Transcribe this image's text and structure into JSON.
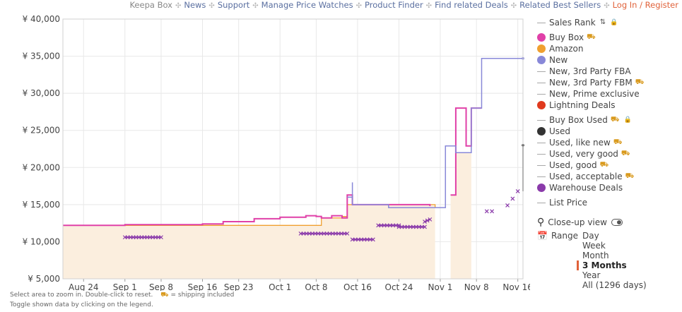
{
  "nav": {
    "items": [
      "Keepa Box",
      "News",
      "Support",
      "Manage Price Watches",
      "Product Finder",
      "Find related Deals",
      "Related Best Sellers"
    ],
    "login": "Log In / Register"
  },
  "colors": {
    "buy_box": "#e040a8",
    "amazon": "#f0a030",
    "new": "#8888d8",
    "lightning": "#e03a1e",
    "used": "#333333",
    "warehouse": "#8a3aaa",
    "amazon_fill": "#fbeede",
    "grid": "#e8e8e8"
  },
  "legend": [
    {
      "label": "Sales Rank",
      "symbol": "dash",
      "sort_icon": true,
      "lock": true
    },
    {
      "label": "Buy Box",
      "symbol": "dot",
      "color": "#e040a8",
      "truck": true
    },
    {
      "label": "Amazon",
      "symbol": "dot",
      "color": "#f0a030"
    },
    {
      "label": "New",
      "symbol": "dot",
      "color": "#8888d8"
    },
    {
      "label": "New, 3rd Party FBA",
      "symbol": "dash"
    },
    {
      "label": "New, 3rd Party FBM",
      "symbol": "dash",
      "truck": true
    },
    {
      "label": "New, Prime exclusive",
      "symbol": "dash"
    },
    {
      "label": "Lightning Deals",
      "symbol": "dot",
      "color": "#e03a1e"
    },
    {
      "label": "Buy Box Used",
      "symbol": "dash",
      "truck": true,
      "lock": true
    },
    {
      "label": "Used",
      "symbol": "dot",
      "color": "#333333"
    },
    {
      "label": "Used, like new",
      "symbol": "dash",
      "truck": true
    },
    {
      "label": "Used, very good",
      "symbol": "dash",
      "truck": true
    },
    {
      "label": "Used, good",
      "symbol": "dash",
      "truck": true
    },
    {
      "label": "Used, acceptable",
      "symbol": "dash",
      "truck": true
    },
    {
      "label": "Warehouse Deals",
      "symbol": "dot",
      "color": "#8a3aaa"
    },
    {
      "label": "List Price",
      "symbol": "dash"
    }
  ],
  "closeup": {
    "label": "Close-up view"
  },
  "range": {
    "label": "Range",
    "options": [
      "Day",
      "Week",
      "Month",
      "3 Months",
      "Year",
      "All (1296 days)"
    ],
    "selected": "3 Months"
  },
  "notes": {
    "select": "Select area to zoom in. Double-click to reset.",
    "shipping": "= shipping included",
    "toggle": "Toggle shown data by clicking on the legend."
  },
  "chart_data": {
    "type": "line",
    "ylim": [
      5000,
      40000
    ],
    "yticks": [
      5000,
      10000,
      15000,
      20000,
      25000,
      30000,
      35000,
      40000
    ],
    "ytick_labels": [
      "¥ 5,000",
      "¥ 10,000",
      "¥ 15,000",
      "¥ 20,000",
      "¥ 25,000",
      "¥ 30,000",
      "¥ 35,000",
      "¥ 40,000"
    ],
    "xlim": [
      "2024-08-20",
      "2024-11-17"
    ],
    "xticks": [
      "2024-08-24",
      "2024-09-01",
      "2024-09-08",
      "2024-09-16",
      "2024-09-23",
      "2024-10-01",
      "2024-10-08",
      "2024-10-16",
      "2024-10-24",
      "2024-11-01",
      "2024-11-08",
      "2024-11-16"
    ],
    "xtick_labels": [
      "Aug 24",
      "Sep 1",
      "Sep 8",
      "Sep 16",
      "Sep 23",
      "Oct 1",
      "Oct 8",
      "Oct 16",
      "Oct 24",
      "Nov 1",
      "Nov 8",
      "Nov 16"
    ],
    "series": [
      {
        "name": "Amazon",
        "style": "area",
        "segments": [
          [
            [
              "2024-08-20",
              12200
            ],
            [
              "2024-10-09",
              13200
            ],
            [
              "2024-10-13",
              13400
            ],
            [
              "2024-10-14",
              15000
            ],
            [
              "2024-10-30",
              15000
            ],
            [
              "2024-10-31",
              14600
            ]
          ],
          [
            [
              "2024-11-03",
              16300
            ],
            [
              "2024-11-04",
              22000
            ],
            [
              "2024-11-07",
              22000
            ]
          ]
        ]
      },
      {
        "name": "Buy Box",
        "style": "step",
        "segments": [
          [
            [
              "2024-08-20",
              12200
            ],
            [
              "2024-09-01",
              12300
            ],
            [
              "2024-09-16",
              12400
            ],
            [
              "2024-09-20",
              12700
            ],
            [
              "2024-09-26",
              13100
            ],
            [
              "2024-10-01",
              13300
            ],
            [
              "2024-10-06",
              13500
            ],
            [
              "2024-10-08",
              13400
            ],
            [
              "2024-10-09",
              13200
            ],
            [
              "2024-10-11",
              13500
            ],
            [
              "2024-10-13",
              13200
            ],
            [
              "2024-10-14",
              16300
            ],
            [
              "2024-10-15",
              15000
            ],
            [
              "2024-10-30",
              14800
            ]
          ],
          [
            [
              "2024-11-03",
              16300
            ],
            [
              "2024-11-04",
              28000
            ],
            [
              "2024-11-06",
              22900
            ],
            [
              "2024-11-07",
              28000
            ],
            [
              "2024-11-09",
              28000
            ]
          ]
        ]
      },
      {
        "name": "New",
        "style": "step",
        "segments": [
          [
            [
              "2024-10-14",
              16000
            ],
            [
              "2024-10-15",
              18000
            ],
            [
              "2024-10-15",
              15000
            ],
            [
              "2024-10-22",
              14600
            ],
            [
              "2024-11-01",
              14600
            ],
            [
              "2024-11-02",
              18000
            ],
            [
              "2024-11-02",
              22900
            ],
            [
              "2024-11-04",
              22900
            ],
            [
              "2024-11-04",
              22000
            ],
            [
              "2024-11-07",
              22000
            ],
            [
              "2024-11-07",
              28000
            ],
            [
              "2024-11-09",
              28000
            ],
            [
              "2024-11-09",
              34700
            ],
            [
              "2024-11-17",
              34700
            ]
          ]
        ]
      },
      {
        "name": "Used",
        "style": "step",
        "segments": [
          [
            [
              "2024-11-17",
              16800
            ],
            [
              "2024-11-17",
              23000
            ]
          ]
        ]
      },
      {
        "name": "Warehouse Deals",
        "style": "markers",
        "segments": [
          [
            [
              "2024-09-01",
              10600
            ],
            [
              "2024-09-08",
              10600
            ]
          ],
          [
            [
              "2024-10-05",
              11100
            ],
            [
              "2024-10-14",
              11100
            ]
          ],
          [
            [
              "2024-10-15",
              10300
            ],
            [
              "2024-10-19",
              10300
            ]
          ],
          [
            [
              "2024-10-20",
              12200
            ],
            [
              "2024-10-24",
              12200
            ]
          ],
          [
            [
              "2024-10-24",
              12000
            ],
            [
              "2024-10-29",
              12000
            ]
          ],
          [
            [
              "2024-10-29",
              12700
            ],
            [
              "2024-10-30",
              13000
            ]
          ]
        ],
        "points": [
          [
            "2024-11-10",
            14100
          ],
          [
            "2024-11-11",
            14100
          ],
          [
            "2024-11-14",
            14900
          ],
          [
            "2024-11-15",
            15800
          ],
          [
            "2024-11-16",
            16800
          ]
        ]
      }
    ]
  }
}
